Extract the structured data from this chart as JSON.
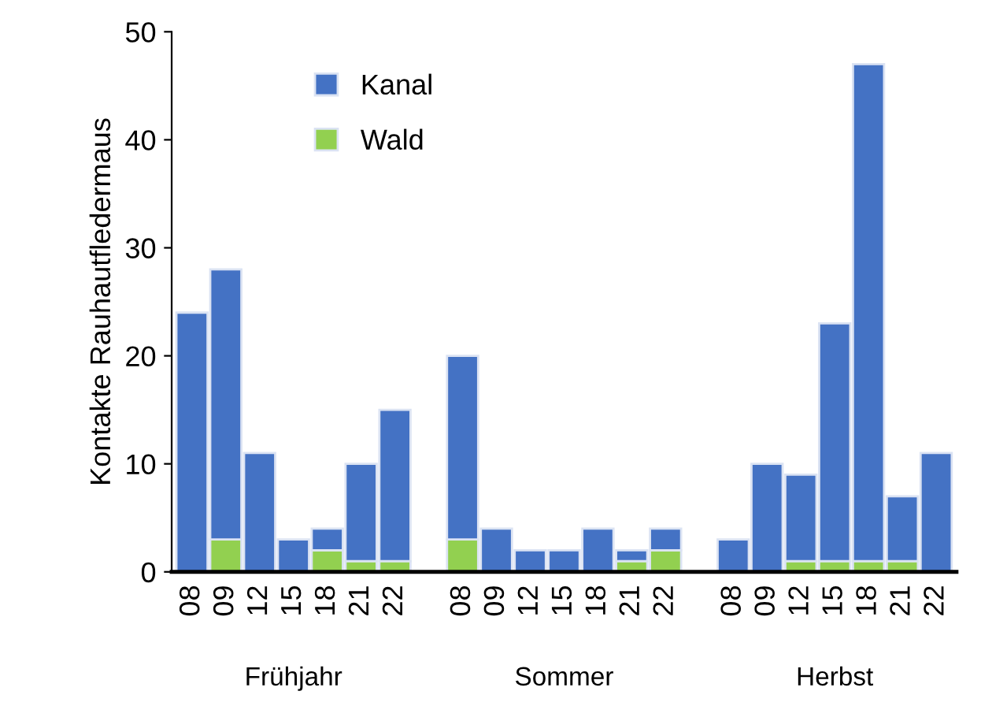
{
  "chart_data": {
    "type": "bar",
    "stacked": true,
    "ylabel": "Kontakte Rauhautfledermaus",
    "categories": [
      "08",
      "09",
      "12",
      "15",
      "18",
      "21",
      "22",
      null,
      "08",
      "09",
      "12",
      "15",
      "18",
      "21",
      "22",
      null,
      "08",
      "09",
      "12",
      "15",
      "18",
      "21",
      "22"
    ],
    "series": [
      {
        "name": "Wald",
        "color": "#92d050",
        "values": [
          0,
          3,
          0,
          0,
          2,
          1,
          1,
          null,
          3,
          0,
          0,
          0,
          0,
          1,
          2,
          null,
          0,
          0,
          1,
          1,
          1,
          1,
          0
        ]
      },
      {
        "name": "Kanal",
        "color": "#4472c4",
        "values": [
          24,
          25,
          11,
          3,
          2,
          9,
          14,
          null,
          17,
          4,
          2,
          2,
          4,
          1,
          2,
          null,
          3,
          10,
          8,
          22,
          46,
          6,
          11
        ]
      }
    ],
    "annotations": [
      "Frühjahr",
      "Sommer",
      "Herbst"
    ],
    "ylim": [
      0,
      50
    ],
    "yticks": [
      0,
      10,
      20,
      30,
      40,
      50
    ],
    "grid": false,
    "legend": "top left"
  }
}
